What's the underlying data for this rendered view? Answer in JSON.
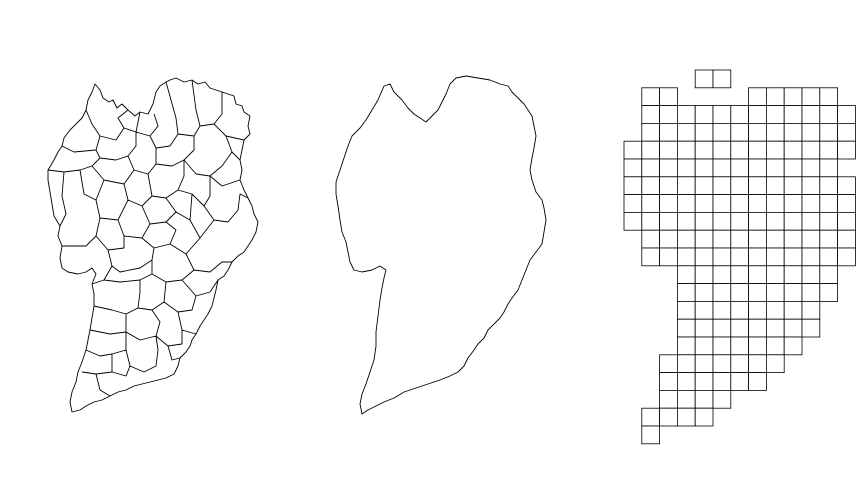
{
  "figure": {
    "panels": [
      {
        "id": "districts",
        "kind": "administrative-subdivisions"
      },
      {
        "id": "outline",
        "kind": "city-boundary"
      },
      {
        "id": "grid",
        "kind": "regular-grid-cells"
      }
    ],
    "style": {
      "stroke": "#000000",
      "fill": "#ffffff",
      "background": "#ffffff"
    }
  },
  "grid": {
    "rows": [
      [
        4,
        5
      ],
      [
        1,
        2,
        7,
        8,
        9,
        10,
        11
      ],
      [
        1,
        2,
        3,
        4,
        5,
        6,
        7,
        8,
        9,
        10,
        11,
        12
      ],
      [
        1,
        2,
        3,
        4,
        5,
        6,
        7,
        8,
        9,
        10,
        11,
        12
      ],
      [
        0,
        1,
        2,
        3,
        4,
        5,
        6,
        7,
        8,
        9,
        10,
        11,
        12
      ],
      [
        0,
        1,
        2,
        3,
        4,
        5,
        6,
        7,
        8,
        9,
        10,
        11
      ],
      [
        0,
        1,
        2,
        3,
        4,
        5,
        6,
        7,
        8,
        9,
        10,
        11,
        12
      ],
      [
        0,
        1,
        2,
        3,
        4,
        5,
        6,
        7,
        8,
        9,
        10,
        11,
        12
      ],
      [
        0,
        1,
        2,
        3,
        4,
        5,
        6,
        7,
        8,
        9,
        10,
        11,
        12
      ],
      [
        1,
        2,
        3,
        4,
        5,
        6,
        7,
        8,
        9,
        10,
        11,
        12
      ],
      [
        1,
        2,
        3,
        4,
        5,
        6,
        7,
        8,
        9,
        10,
        11,
        12
      ],
      [
        3,
        4,
        5,
        6,
        7,
        8,
        9,
        10,
        11
      ],
      [
        3,
        4,
        5,
        6,
        7,
        8,
        9,
        10,
        11
      ],
      [
        3,
        4,
        5,
        6,
        7,
        8,
        9,
        10
      ],
      [
        3,
        4,
        5,
        6,
        7,
        8,
        9,
        10
      ],
      [
        3,
        4,
        5,
        6,
        7,
        8,
        9
      ],
      [
        2,
        3,
        4,
        5,
        6,
        7,
        8
      ],
      [
        2,
        3,
        4,
        5,
        6,
        7
      ],
      [
        2,
        3,
        4,
        5
      ],
      [
        1,
        2,
        3,
        4
      ],
      [
        1
      ]
    ]
  }
}
